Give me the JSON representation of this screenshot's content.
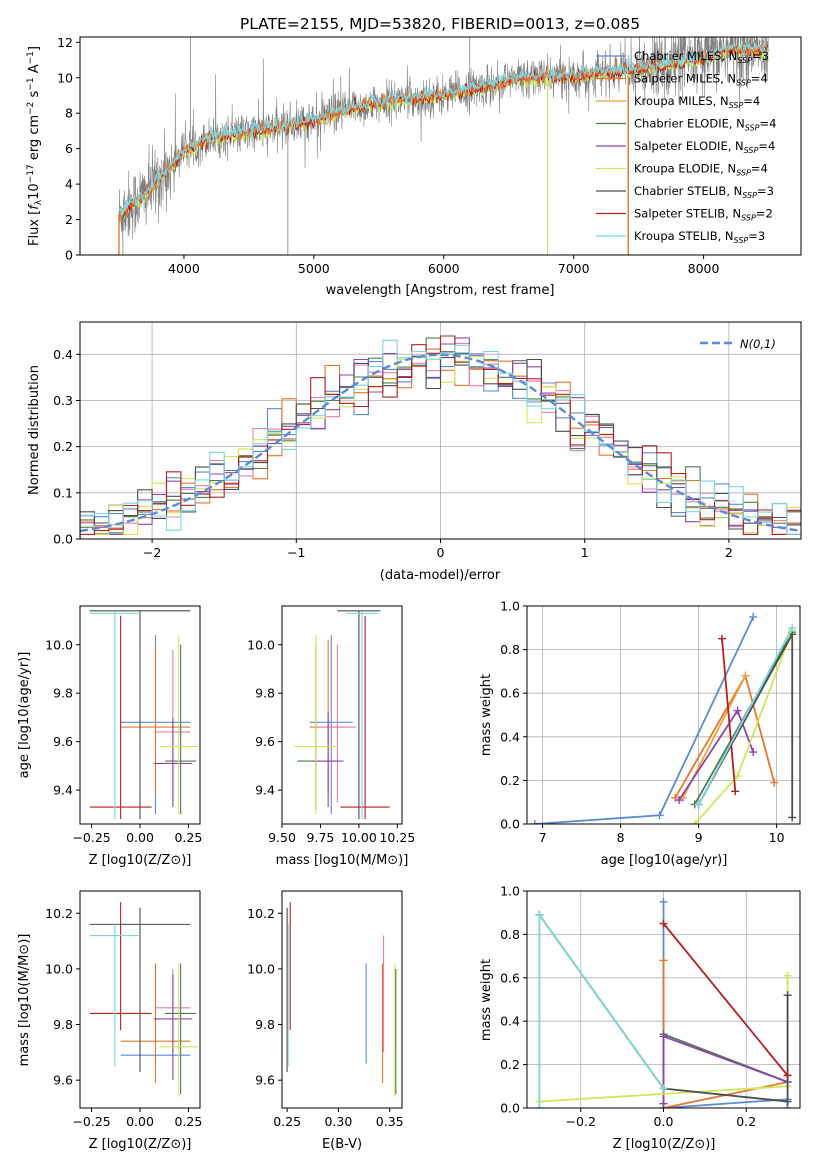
{
  "colors": {
    "Chabrier MILES": "#5b8ad6",
    "Salpeter MILES": "#e8772e",
    "Kroupa MILES": "#e8a43a",
    "Chabrier ELODIE": "#4e7d4e",
    "Salpeter ELODIE": "#8e44ad",
    "Kroupa ELODIE": "#cfe85a",
    "Chabrier STELIB": "#4d4d4d",
    "Salpeter STELIB": "#b22222",
    "Kroupa STELIB": "#7fd6e0",
    "pink": "#e87fb0",
    "data": "#808080",
    "normal": "#5b8ad6"
  },
  "chart_data": [
    {
      "id": "spectrum",
      "type": "line",
      "title": "PLATE=2155, MJD=53820, FIBERID=0013, z=0.085",
      "xlabel": "wavelength [Angstrom, rest frame]",
      "ylabel": "Flux [f_λ10^-17 erg cm^-2 s^-1 A^-1]",
      "xlim": [
        3200,
        8750
      ],
      "ylim": [
        0,
        12.3
      ],
      "xticks": [
        "4000",
        "5000",
        "6000",
        "7000",
        "8000"
      ],
      "yticks": [
        "0",
        "2",
        "4",
        "6",
        "8",
        "10",
        "12"
      ],
      "grid": false,
      "legend_position": "right",
      "legend": [
        {
          "name": "Chabrier MILES",
          "nssp": "3"
        },
        {
          "name": "Salpeter MILES",
          "nssp": "4"
        },
        {
          "name": "Kroupa MILES",
          "nssp": "4"
        },
        {
          "name": "Chabrier ELODIE",
          "nssp": "4"
        },
        {
          "name": "Salpeter ELODIE",
          "nssp": "4"
        },
        {
          "name": "Kroupa ELODIE",
          "nssp": "4"
        },
        {
          "name": "Chabrier STELIB",
          "nssp": "3"
        },
        {
          "name": "Salpeter STELIB",
          "nssp": "2"
        },
        {
          "name": "Kroupa STELIB",
          "nssp": "3"
        }
      ],
      "continuum": {
        "x": [
          3500,
          3700,
          3900,
          4000,
          4200,
          4500,
          4800,
          5000,
          5300,
          5600,
          6000,
          6300,
          6600,
          7000,
          7400,
          7600,
          8000,
          8200,
          8500
        ],
        "y": [
          2.3,
          3.4,
          5.0,
          5.9,
          6.6,
          6.9,
          7.3,
          7.6,
          8.3,
          8.7,
          9.0,
          9.5,
          10.0,
          10.1,
          10.4,
          10.6,
          11.1,
          11.6,
          11.5
        ]
      }
    },
    {
      "id": "residuals",
      "type": "histogram",
      "xlabel": "(data-model)/error",
      "ylabel": "Normed distribution",
      "xlim": [
        -2.5,
        2.5
      ],
      "ylim": [
        0,
        0.47
      ],
      "xticks": [
        "−2",
        "−1",
        "0",
        "1",
        "2"
      ],
      "yticks": [
        "0.0",
        "0.1",
        "0.2",
        "0.3",
        "0.4"
      ],
      "grid": true,
      "legend_position": "top-right",
      "normal_label": "N(0,1)"
    },
    {
      "id": "age-vs-Z",
      "type": "errorbar",
      "xlabel": "Z [log10(Z/Z⊙)]",
      "ylabel": "age  [log10(age/yr)]",
      "xlim": [
        -0.31,
        0.31
      ],
      "ylim": [
        9.26,
        10.16
      ],
      "xticks": [
        "−0.25",
        "0.00",
        "0.25"
      ],
      "yticks": [
        "9.4",
        "9.6",
        "9.8",
        "10.0"
      ],
      "grid": false,
      "points": [
        {
          "c": "Chabrier MILES",
          "x": 0.08,
          "y": 9.68,
          "xe": 0.18,
          "y0": 9.3,
          "y1": 10.04
        },
        {
          "c": "Salpeter MILES",
          "x": 0.08,
          "y": 9.66,
          "xe": 0.18,
          "y0": 9.38,
          "y1": 10.0
        },
        {
          "c": "pink",
          "x": 0.17,
          "y": 9.64,
          "xe": 0.09,
          "y0": 9.35,
          "y1": 9.98
        },
        {
          "c": "Chabrier ELODIE",
          "x": 0.21,
          "y": 9.52,
          "xe": 0.08,
          "y0": 9.3,
          "y1": 10.0
        },
        {
          "c": "Salpeter ELODIE",
          "x": 0.17,
          "y": 9.51,
          "xe": 0.1,
          "y0": 9.33,
          "y1": 9.7
        },
        {
          "c": "Kroupa ELODIE",
          "x": 0.2,
          "y": 9.58,
          "xe": 0.1,
          "y0": 9.3,
          "y1": 10.04
        },
        {
          "c": "Chabrier STELIB",
          "x": 0.0,
          "y": 10.14,
          "xe": 0.26,
          "y0": 9.28,
          "y1": 10.14
        },
        {
          "c": "Salpeter STELIB",
          "x": -0.1,
          "y": 9.33,
          "xe": 0.16,
          "y0": 9.28,
          "y1": 10.12
        },
        {
          "c": "Kroupa STELIB",
          "x": -0.13,
          "y": 10.13,
          "xe": 0.13,
          "y0": 9.28,
          "y1": 10.14
        }
      ]
    },
    {
      "id": "age-vs-mass",
      "type": "errorbar",
      "xlabel": "mass [log10(M/M⊙)]",
      "ylabel": "",
      "xlim": [
        9.5,
        10.28
      ],
      "ylim": [
        9.26,
        10.16
      ],
      "xticks": [
        "9.50",
        "9.75",
        "10.00",
        "10.25"
      ],
      "yticks": [
        "9.4",
        "9.6",
        "9.8",
        "10.0"
      ],
      "grid": false,
      "points": [
        {
          "c": "Chabrier MILES",
          "x": 9.82,
          "y": 9.68,
          "xe": 0.14,
          "y0": 9.3,
          "y1": 10.04
        },
        {
          "c": "Salpeter MILES",
          "x": 9.8,
          "y": 9.66,
          "xe": 0.12,
          "y0": 9.38,
          "y1": 10.02
        },
        {
          "c": "pink",
          "x": 9.86,
          "y": 9.66,
          "xe": 0.12,
          "y0": 9.35,
          "y1": 10.0
        },
        {
          "c": "Chabrier ELODIE",
          "x": 9.72,
          "y": 9.52,
          "xe": 0.12,
          "y0": 9.32,
          "y1": 10.0
        },
        {
          "c": "Salpeter ELODIE",
          "x": 9.8,
          "y": 9.52,
          "xe": 0.1,
          "y0": 9.33,
          "y1": 9.72
        },
        {
          "c": "Kroupa ELODIE",
          "x": 9.72,
          "y": 9.58,
          "xe": 0.14,
          "y0": 9.3,
          "y1": 10.04
        },
        {
          "c": "Chabrier STELIB",
          "x": 10.0,
          "y": 10.14,
          "xe": 0.14,
          "y0": 9.28,
          "y1": 10.14
        },
        {
          "c": "Salpeter STELIB",
          "x": 10.04,
          "y": 9.33,
          "xe": 0.16,
          "y0": 9.28,
          "y1": 10.12
        },
        {
          "c": "Kroupa STELIB",
          "x": 10.02,
          "y": 10.13,
          "xe": 0.1,
          "y0": 9.28,
          "y1": 10.14
        }
      ]
    },
    {
      "id": "weight-vs-age",
      "type": "line",
      "xlabel": "age  [log10(age/yr)]",
      "ylabel": "mass weight",
      "xlim": [
        6.8,
        10.3
      ],
      "ylim": [
        0,
        1.0
      ],
      "xticks": [
        "7",
        "8",
        "9",
        "10"
      ],
      "yticks": [
        "0.0",
        "0.2",
        "0.4",
        "0.6",
        "0.8",
        "1.0"
      ],
      "grid": true,
      "series": [
        {
          "c": "Chabrier MILES",
          "x": [
            6.9,
            8.5,
            9.7
          ],
          "y": [
            0.0,
            0.04,
            0.95
          ]
        },
        {
          "c": "Salpeter MILES",
          "x": [
            8.7,
            9.6,
            9.97
          ],
          "y": [
            0.12,
            0.68,
            0.19
          ]
        },
        {
          "c": "Kroupa MILES",
          "x": [
            8.8,
            9.6
          ],
          "y": [
            0.12,
            0.68
          ]
        },
        {
          "c": "Chabrier ELODIE",
          "x": [
            8.95,
            10.2
          ],
          "y": [
            0.09,
            0.88
          ]
        },
        {
          "c": "Salpeter ELODIE",
          "x": [
            8.75,
            9.5,
            9.7
          ],
          "y": [
            0.11,
            0.52,
            0.33
          ]
        },
        {
          "c": "Kroupa ELODIE",
          "x": [
            8.95,
            9.5,
            10.2
          ],
          "y": [
            0.0,
            0.22,
            0.89
          ]
        },
        {
          "c": "Chabrier STELIB",
          "x": [
            9.0,
            10.2,
            10.2
          ],
          "y": [
            0.09,
            0.87,
            0.03
          ]
        },
        {
          "c": "Salpeter STELIB",
          "x": [
            9.3,
            9.47
          ],
          "y": [
            0.85,
            0.15
          ]
        },
        {
          "c": "Kroupa STELIB",
          "x": [
            9.0,
            10.2
          ],
          "y": [
            0.09,
            0.9
          ]
        }
      ]
    },
    {
      "id": "mass-vs-Z",
      "type": "errorbar",
      "xlabel": "Z [log10(Z/Z⊙)]",
      "ylabel": "mass [log10(M/M⊙)]",
      "xlim": [
        -0.31,
        0.31
      ],
      "ylim": [
        9.5,
        10.28
      ],
      "xticks": [
        "−0.25",
        "0.00",
        "0.25"
      ],
      "yticks": [
        "9.6",
        "9.8",
        "10.0",
        "10.2"
      ],
      "grid": false,
      "points": [
        {
          "c": "Chabrier MILES",
          "x": 0.08,
          "y": 9.69,
          "xe": 0.18,
          "y0": 9.66,
          "y1": 10.02
        },
        {
          "c": "Salpeter MILES",
          "x": 0.08,
          "y": 9.74,
          "xe": 0.18,
          "y0": 9.59,
          "y1": 10.02
        },
        {
          "c": "pink",
          "x": 0.17,
          "y": 9.86,
          "xe": 0.09,
          "y0": 9.7,
          "y1": 10.0
        },
        {
          "c": "Chabrier ELODIE",
          "x": 0.21,
          "y": 9.84,
          "xe": 0.08,
          "y0": 9.55,
          "y1": 10.02
        },
        {
          "c": "Salpeter ELODIE",
          "x": 0.17,
          "y": 9.82,
          "xe": 0.1,
          "y0": 9.6,
          "y1": 9.98
        },
        {
          "c": "Kroupa ELODIE",
          "x": 0.2,
          "y": 9.72,
          "xe": 0.1,
          "y0": 9.54,
          "y1": 10.02
        },
        {
          "c": "Chabrier STELIB",
          "x": 0.0,
          "y": 10.16,
          "xe": 0.26,
          "y0": 9.63,
          "y1": 10.22
        },
        {
          "c": "Salpeter STELIB",
          "x": -0.1,
          "y": 9.84,
          "xe": 0.16,
          "y0": 9.78,
          "y1": 10.24
        },
        {
          "c": "Kroupa STELIB",
          "x": -0.13,
          "y": 10.12,
          "xe": 0.13,
          "y0": 9.65,
          "y1": 10.16
        }
      ]
    },
    {
      "id": "mass-vs-ebv",
      "type": "errorbar",
      "xlabel": "E(B-V)",
      "ylabel": "",
      "xlim": [
        0.245,
        0.362
      ],
      "ylim": [
        9.5,
        10.28
      ],
      "xticks": [
        "0.25",
        "0.30",
        "0.35"
      ],
      "yticks": [
        "9.6",
        "9.8",
        "10.0",
        "10.2"
      ],
      "grid": false,
      "points": [
        {
          "c": "Chabrier MILES",
          "x": 0.327,
          "y0": 9.66,
          "y1": 10.02
        },
        {
          "c": "Salpeter MILES",
          "x": 0.343,
          "y0": 9.59,
          "y1": 10.02
        },
        {
          "c": "pink",
          "x": 0.344,
          "y0": 9.7,
          "y1": 10.12
        },
        {
          "c": "Kroupa ELODIE",
          "x": 0.355,
          "y0": 9.54,
          "y1": 10.02
        },
        {
          "c": "Chabrier ELODIE",
          "x": 0.356,
          "y0": 9.55,
          "y1": 10.0
        },
        {
          "c": "Chabrier STELIB",
          "x": 0.25,
          "y0": 9.63,
          "y1": 10.22
        },
        {
          "c": "Salpeter STELIB",
          "x": 0.253,
          "y0": 9.78,
          "y1": 10.24
        },
        {
          "c": "Kroupa STELIB",
          "x": 0.251,
          "y0": 9.65,
          "y1": 10.16
        }
      ]
    },
    {
      "id": "weight-vs-Z",
      "type": "line",
      "xlabel": "Z [log10(Z/Z⊙)]",
      "ylabel": "mass weight",
      "xlim": [
        -0.33,
        0.33
      ],
      "ylim": [
        0,
        1.0
      ],
      "xticks": [
        "−0.2",
        "0.0",
        "0.2"
      ],
      "yticks": [
        "0.0",
        "0.2",
        "0.4",
        "0.6",
        "0.8",
        "1.0"
      ],
      "grid": true,
      "series": [
        {
          "c": "Chabrier MILES",
          "x": [
            0.0,
            0.0,
            0.3,
            0.3
          ],
          "y": [
            0.95,
            0.0,
            0.04,
            0.0
          ]
        },
        {
          "c": "Salpeter MILES",
          "x": [
            0.0,
            0.0,
            0.3
          ],
          "y": [
            0.68,
            0.0,
            0.12
          ]
        },
        {
          "c": "Chabrier ELODIE",
          "x": [
            0.0,
            0.3
          ],
          "y": [
            0.34,
            0.12
          ]
        },
        {
          "c": "Salpeter ELODIE",
          "x": [
            0.0,
            0.0,
            0.3,
            0.3
          ],
          "y": [
            0.02,
            0.33,
            0.12,
            0.15
          ]
        },
        {
          "c": "Kroupa ELODIE",
          "x": [
            -0.3,
            0.3,
            0.3
          ],
          "y": [
            0.03,
            0.1,
            0.61
          ]
        },
        {
          "c": "Chabrier STELIB",
          "x": [
            -0.3,
            0.0,
            0.3,
            0.3
          ],
          "y": [
            0.89,
            0.09,
            0.03,
            0.52
          ]
        },
        {
          "c": "Salpeter STELIB",
          "x": [
            0.0,
            0.3
          ],
          "y": [
            0.85,
            0.15
          ]
        },
        {
          "c": "Kroupa STELIB",
          "x": [
            -0.3,
            -0.3,
            0.0
          ],
          "y": [
            0.0,
            0.89,
            0.09
          ]
        }
      ]
    }
  ]
}
